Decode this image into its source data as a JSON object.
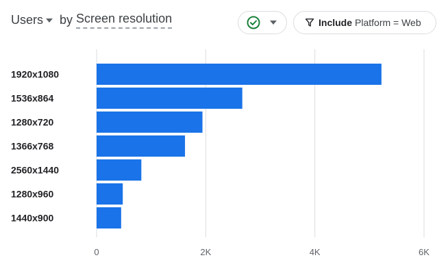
{
  "header": {
    "metric": "Users",
    "by": "by",
    "dimension": "Screen resolution"
  },
  "filter_chip": {
    "include": "Include",
    "condition": "Platform = Web"
  },
  "icons": {
    "compare": "check-circle-icon",
    "compare_caret": "caret-down-icon",
    "filter": "funnel-icon",
    "metric_caret": "caret-down-icon"
  },
  "colors": {
    "bar": "#1a73e8",
    "check": "#188038",
    "grid": "#dadce0"
  },
  "chart_data": {
    "type": "bar",
    "orientation": "horizontal",
    "categories": [
      "1920x1080",
      "1536x864",
      "1280x720",
      "1366x768",
      "2560x1440",
      "1280x960",
      "1440x900"
    ],
    "values": [
      5220,
      2670,
      1940,
      1620,
      820,
      480,
      450
    ],
    "xlim": [
      0,
      6000
    ],
    "x_ticks": [
      {
        "value": 0,
        "label": "0"
      },
      {
        "value": 2000,
        "label": "2K"
      },
      {
        "value": 4000,
        "label": "4K"
      },
      {
        "value": 6000,
        "label": "6K"
      }
    ],
    "grid": true
  }
}
